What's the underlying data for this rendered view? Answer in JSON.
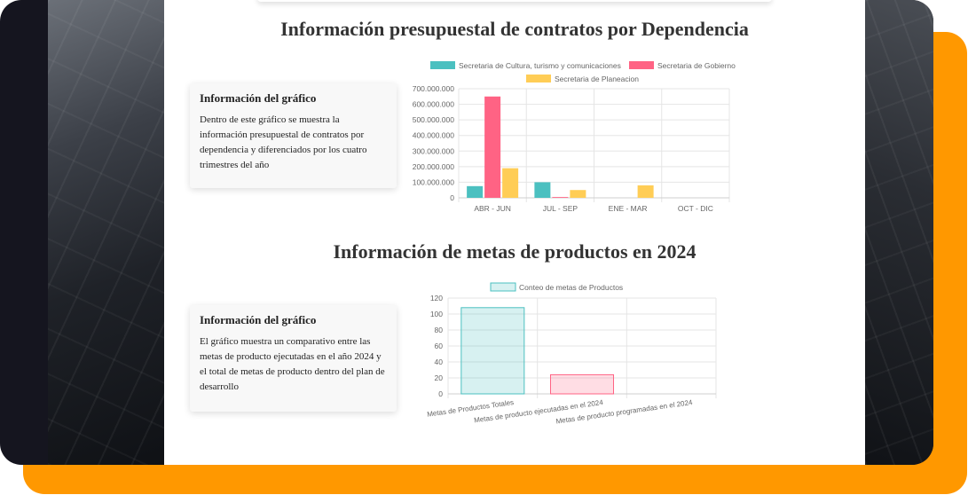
{
  "sections": [
    {
      "title": "Información presupuestal de contratos por Dependencia",
      "info_title": "Información del gráfico",
      "info_text": "Dentro de este gráfico se muestra la información presupuestal de contratos por dependencia y diferenciados por los cuatro trimestres del año"
    },
    {
      "title": "Información de metas de productos en 2024",
      "info_title": "Información del gráfico",
      "info_text": "El gráfico muestra un comparativo entre las metas de producto ejecutadas en el año 2024 y el total de metas de producto dentro del plan de desarrollo"
    }
  ],
  "chart_data": [
    {
      "type": "bar",
      "categories": [
        "ABR - JUN",
        "JUL - SEP",
        "ENE - MAR",
        "OCT - DIC"
      ],
      "series": [
        {
          "name": "Secretaria de Cultura, turismo y comunicaciones",
          "color": "#4bc0c0",
          "values": [
            75000000,
            100000000,
            0,
            0
          ]
        },
        {
          "name": "Secretaria de Gobierno",
          "color": "#ff6384",
          "values": [
            650000000,
            5000000,
            0,
            0
          ]
        },
        {
          "name": "Secretaria de Planeacion",
          "color": "#ffcd56",
          "values": [
            190000000,
            50000000,
            80000000,
            0
          ]
        }
      ],
      "ylim": [
        0,
        700000000
      ],
      "yticks": [
        0,
        100000000,
        200000000,
        300000000,
        400000000,
        500000000,
        600000000,
        700000000
      ],
      "ytick_labels": [
        "0",
        "100.000.000",
        "200.000.000",
        "300.000.000",
        "400.000.000",
        "500.000.000",
        "600.000.000",
        "700.000.000"
      ],
      "legend": "top",
      "grid": true
    },
    {
      "type": "bar",
      "categories": [
        "Metas de Productos Totales",
        "Metas de producto ejecutadas en el 2024",
        "Metas de producto programadas en el 2024"
      ],
      "series": [
        {
          "name": "Conteo de metas de Productos",
          "values": [
            108,
            24,
            0
          ]
        }
      ],
      "bar_fills": [
        "rgba(75,192,192,0.22)",
        "rgba(255,99,132,0.22)",
        "rgba(255,205,86,0.22)"
      ],
      "bar_strokes": [
        "#4bc0c0",
        "#ff6384",
        "#ffcd56"
      ],
      "ylim": [
        0,
        120
      ],
      "yticks": [
        0,
        20,
        40,
        60,
        80,
        100,
        120
      ],
      "legend": "top",
      "grid": true
    }
  ]
}
